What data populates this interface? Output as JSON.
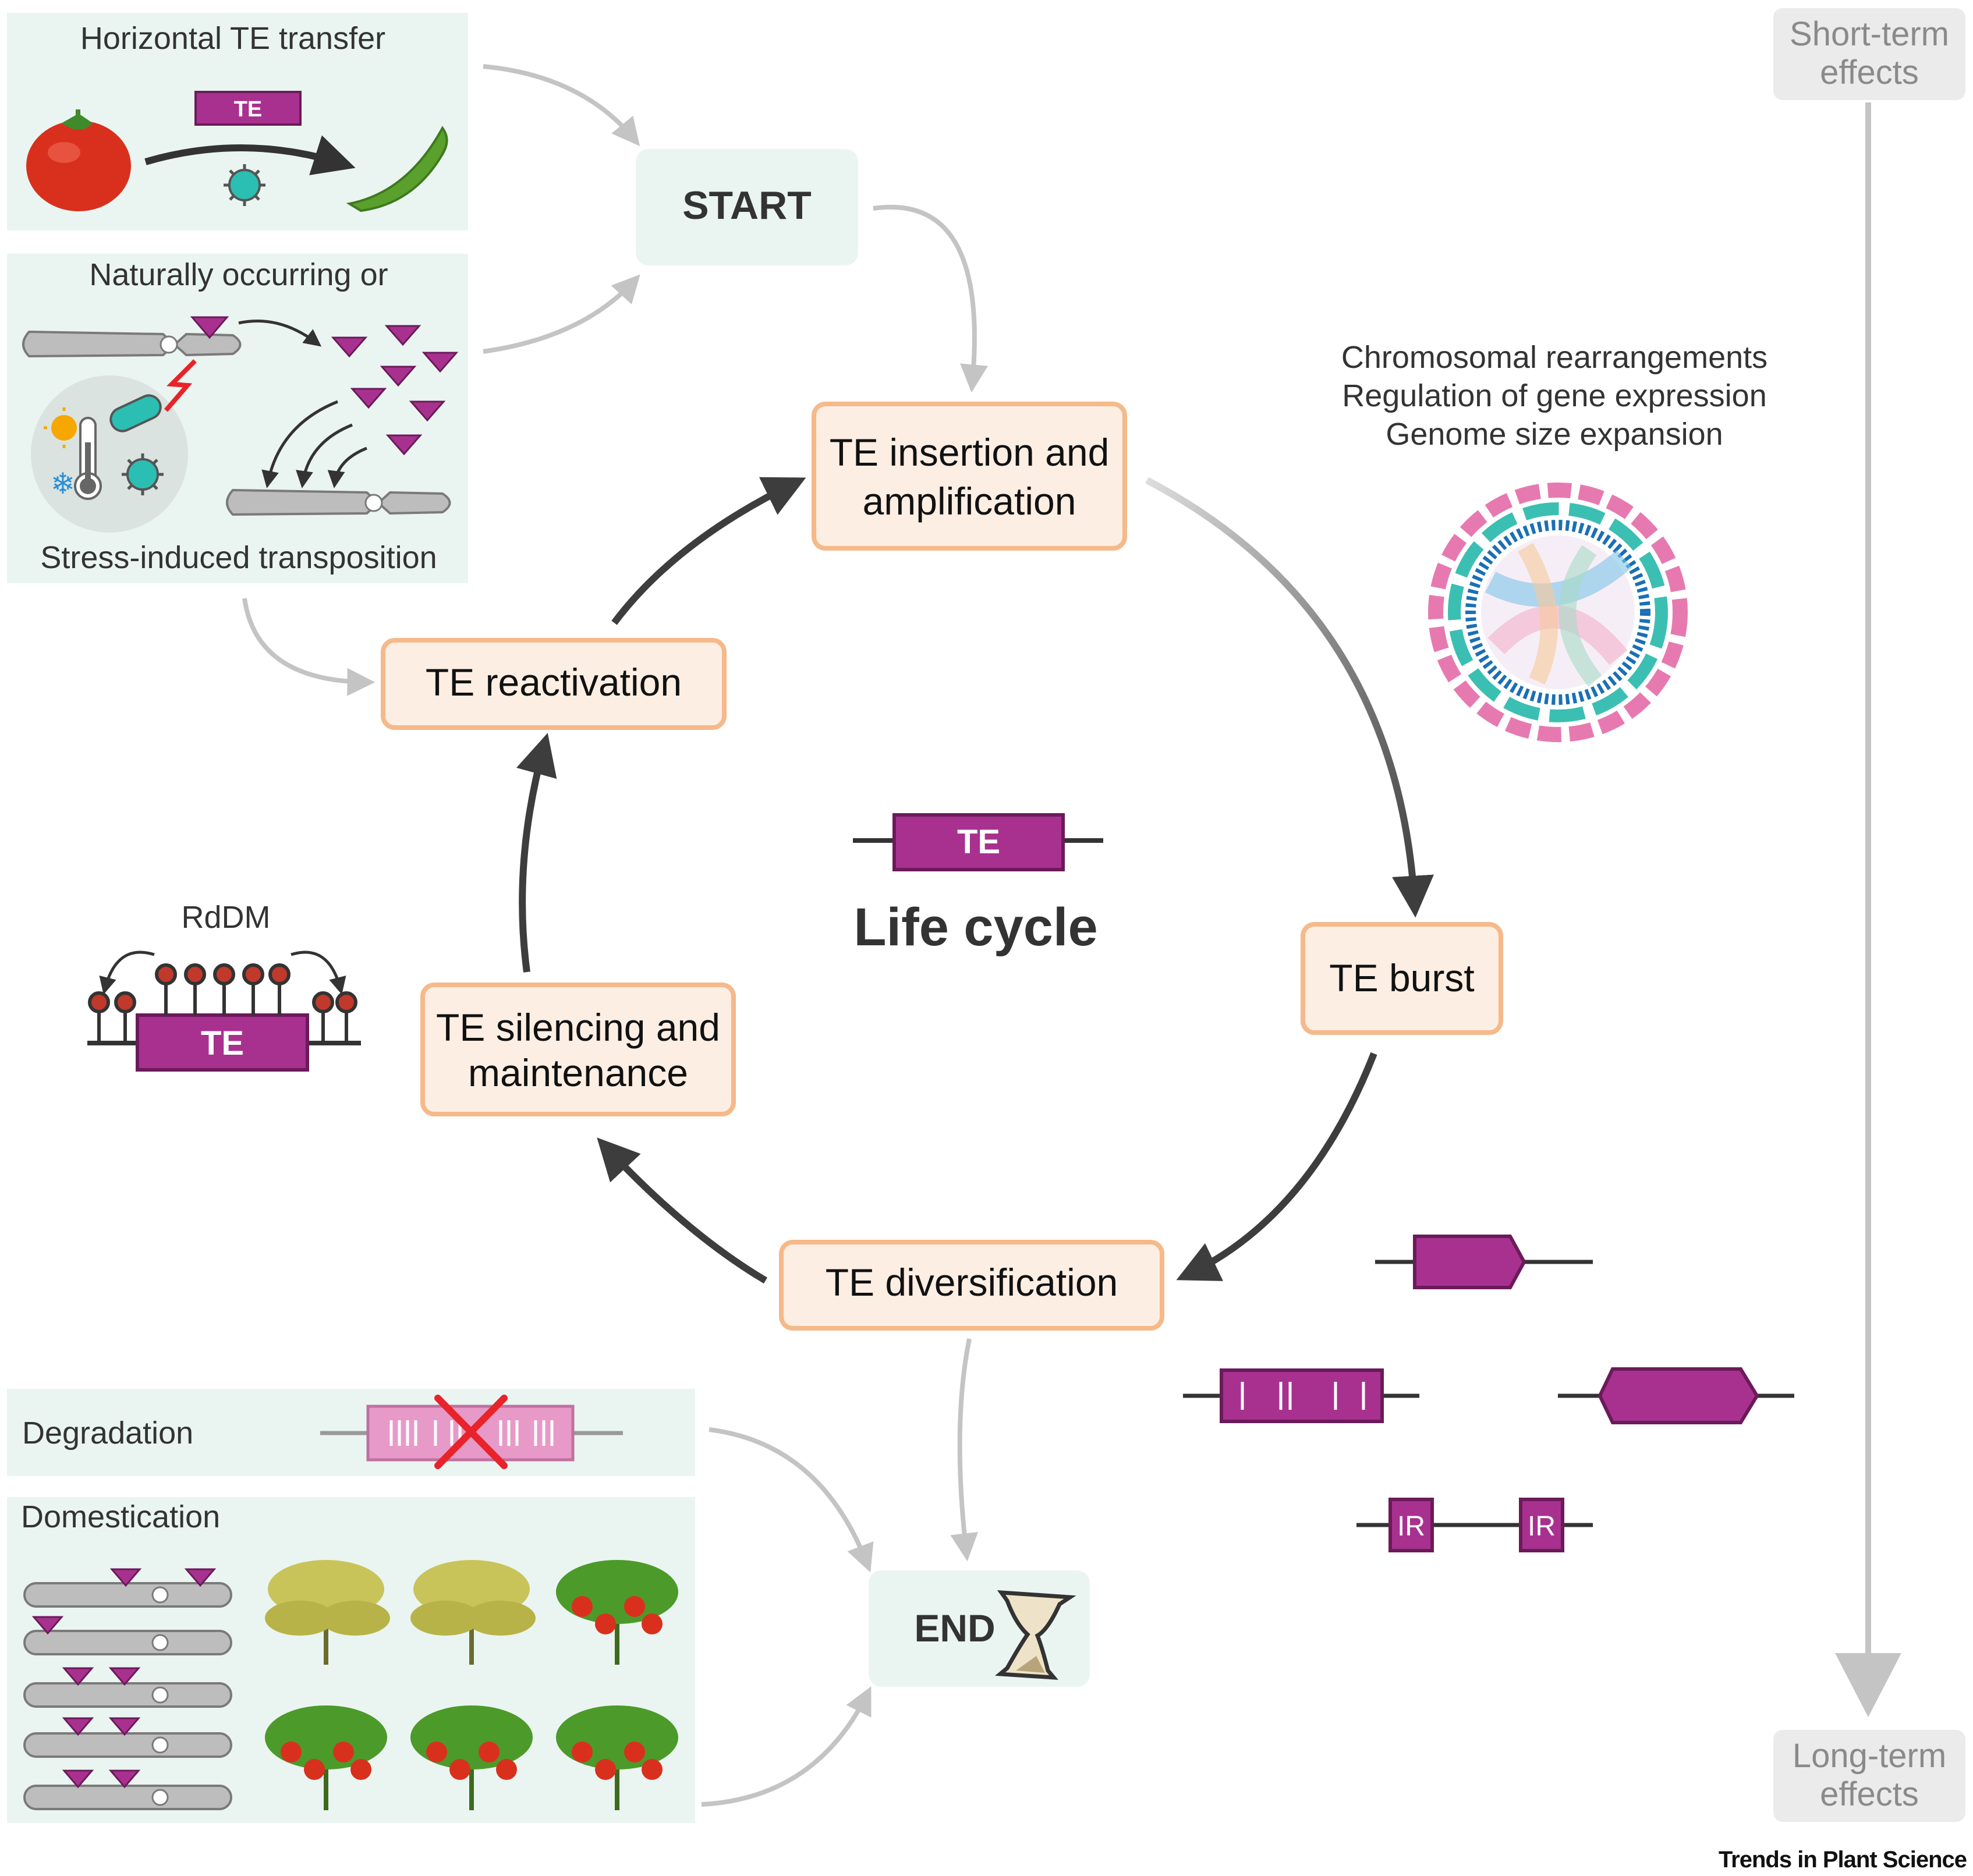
{
  "cycle": {
    "center_te_label": "TE",
    "title": "Life cycle",
    "start_label": "START",
    "end_label": "END",
    "stages": {
      "insertion": [
        "TE insertion and",
        "amplification"
      ],
      "burst": "TE burst",
      "diversification": "TE diversification",
      "silencing": [
        "TE silencing and",
        "maintenance"
      ],
      "reactivation": "TE reactivation"
    }
  },
  "panels": {
    "horizontal_transfer": {
      "title": "Horizontal TE transfer",
      "te_label": "TE"
    },
    "stress": {
      "title_top": "Naturally occurring or",
      "title_bottom": "Stress-induced transposition"
    },
    "rddm": {
      "label": "RdDM",
      "te_label": "TE"
    },
    "degradation": {
      "label": "Degradation"
    },
    "domestication": {
      "label": "Domestication"
    }
  },
  "effects": {
    "lines": [
      "Chromosomal rearrangements",
      "Regulation of gene expression",
      "Genome size expansion"
    ]
  },
  "diversification_variants": {
    "ir_label": "IR"
  },
  "timeline": {
    "short_term": [
      "Short-term",
      "effects"
    ],
    "long_term": [
      "Long-term",
      "effects"
    ]
  },
  "footer": {
    "journal": "Trends in Plant Science"
  },
  "colors": {
    "te_magenta": "#a8318f",
    "stage_fill": "#fdeee3",
    "stage_border": "#f5b98a",
    "panel_fill": "#eaf5f1",
    "arrow_dark": "#3d3d3d",
    "arrow_grey": "#c4c4c4"
  }
}
